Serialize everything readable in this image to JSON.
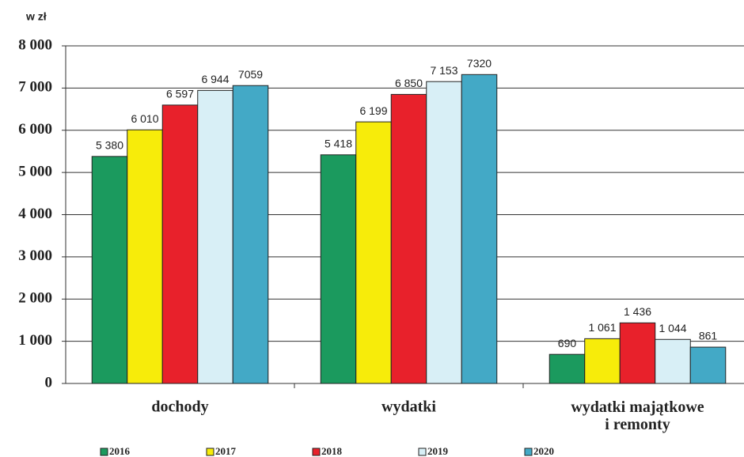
{
  "chart_data": {
    "type": "bar",
    "y_label": "w zł",
    "categories": [
      "dochody",
      "wydatki",
      "wydatki majątkowe\ni remonty"
    ],
    "series": [
      {
        "name": "2016",
        "color": "#1b9a5e",
        "values": [
          5380,
          5418,
          690
        ],
        "value_labels": [
          "5 380",
          "5 418",
          "690"
        ]
      },
      {
        "name": "2017",
        "color": "#f7ec0a",
        "values": [
          6010,
          6199,
          1061
        ],
        "value_labels": [
          "6 010",
          "6 199",
          "1 061"
        ]
      },
      {
        "name": "2018",
        "color": "#e8212b",
        "values": [
          6597,
          6850,
          1436
        ],
        "value_labels": [
          "6 597",
          "6 850",
          "1 436"
        ]
      },
      {
        "name": "2019",
        "color": "#d8eff6",
        "values": [
          6944,
          7153,
          1044
        ],
        "value_labels": [
          "6 944",
          "7 153",
          "1 044"
        ]
      },
      {
        "name": "2020",
        "color": "#43a9c6",
        "values": [
          7059,
          7320,
          861
        ],
        "value_labels": [
          "7059",
          "7320",
          "861"
        ]
      }
    ],
    "ylim": [
      0,
      8000
    ],
    "yticks": [
      0,
      {
        "value": 1000,
        "label": "1 000"
      },
      {
        "value": 2000,
        "label": "2 000"
      },
      {
        "value": 3000,
        "label": "3 000"
      },
      {
        "value": 4000,
        "label": "4 000"
      },
      {
        "value": 5000,
        "label": "5 000"
      },
      {
        "value": 6000,
        "label": "6 000"
      },
      {
        "value": 7000,
        "label": "7 000"
      },
      {
        "value": 8000,
        "label": "8 000"
      }
    ],
    "grid": true
  }
}
